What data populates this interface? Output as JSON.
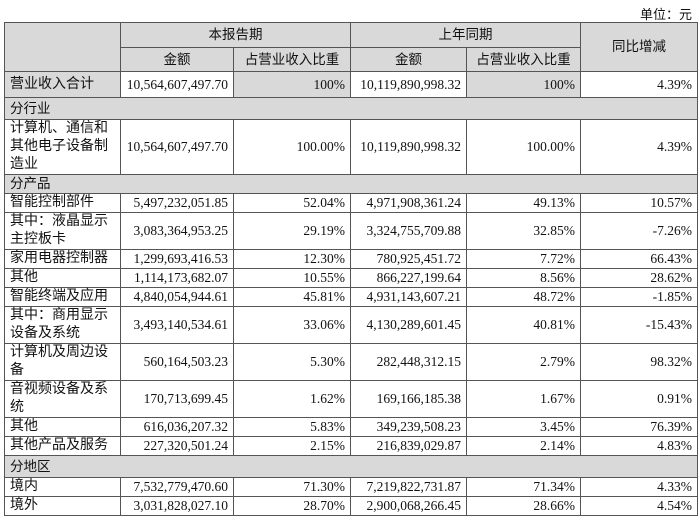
{
  "unit_label": "单位：元",
  "header": {
    "current_period": "本报告期",
    "prior_period": "上年同期",
    "yoy": "同比增减",
    "amount": "金额",
    "share": "占营业收入比重"
  },
  "total": {
    "label": "营业收入合计",
    "amount": "10,564,607,497.70",
    "share": "100%",
    "prior_amount": "10,119,890,998.32",
    "prior_share": "100%",
    "yoy": "4.39%"
  },
  "sections": [
    {
      "title": "分行业",
      "rows": [
        {
          "label": "计算机、通信和其他电子设备制造业",
          "amount": "10,564,607,497.70",
          "share": "100.00%",
          "prior_amount": "10,119,890,998.32",
          "prior_share": "100.00%",
          "yoy": "4.39%"
        }
      ]
    },
    {
      "title": "分产品",
      "rows": [
        {
          "label": "智能控制部件",
          "amount": "5,497,232,051.85",
          "share": "52.04%",
          "prior_amount": "4,971,908,361.24",
          "prior_share": "49.13%",
          "yoy": "10.57%"
        },
        {
          "label": "其中：液晶显示主控板卡",
          "amount": "3,083,364,953.25",
          "share": "29.19%",
          "prior_amount": "3,324,755,709.88",
          "prior_share": "32.85%",
          "yoy": "-7.26%"
        },
        {
          "label": "家用电器控制器",
          "amount": "1,299,693,416.53",
          "share": "12.30%",
          "prior_amount": "780,925,451.72",
          "prior_share": "7.72%",
          "yoy": "66.43%"
        },
        {
          "label": "其他",
          "amount": "1,114,173,682.07",
          "share": "10.55%",
          "prior_amount": "866,227,199.64",
          "prior_share": "8.56%",
          "yoy": "28.62%"
        },
        {
          "label": "智能终端及应用",
          "amount": "4,840,054,944.61",
          "share": "45.81%",
          "prior_amount": "4,931,143,607.21",
          "prior_share": "48.72%",
          "yoy": "-1.85%"
        },
        {
          "label": "其中：商用显示设备及系统",
          "amount": "3,493,140,534.61",
          "share": "33.06%",
          "prior_amount": "4,130,289,601.45",
          "prior_share": "40.81%",
          "yoy": "-15.43%"
        },
        {
          "label": "计算机及周边设备",
          "amount": "560,164,503.23",
          "share": "5.30%",
          "prior_amount": "282,448,312.15",
          "prior_share": "2.79%",
          "yoy": "98.32%"
        },
        {
          "label": "音视频设备及系统",
          "amount": "170,713,699.45",
          "share": "1.62%",
          "prior_amount": "169,166,185.38",
          "prior_share": "1.67%",
          "yoy": "0.91%"
        },
        {
          "label": "其他",
          "amount": "616,036,207.32",
          "share": "5.83%",
          "prior_amount": "349,239,508.23",
          "prior_share": "3.45%",
          "yoy": "76.39%"
        },
        {
          "label": "其他产品及服务",
          "amount": "227,320,501.24",
          "share": "2.15%",
          "prior_amount": "216,839,029.87",
          "prior_share": "2.14%",
          "yoy": "4.83%"
        }
      ]
    },
    {
      "title": "分地区",
      "rows": [
        {
          "label": "境内",
          "amount": "7,532,779,470.60",
          "share": "71.30%",
          "prior_amount": "7,219,822,731.87",
          "prior_share": "71.34%",
          "yoy": "4.33%"
        },
        {
          "label": "境外",
          "amount": "3,031,828,027.10",
          "share": "28.70%",
          "prior_amount": "2,900,068,266.45",
          "prior_share": "28.66%",
          "yoy": "4.54%"
        }
      ]
    }
  ]
}
